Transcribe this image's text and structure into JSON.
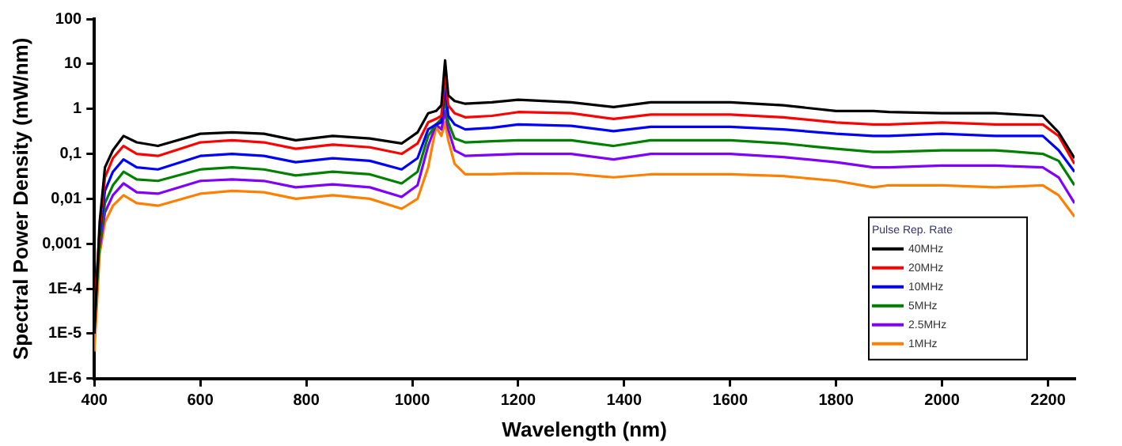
{
  "chart_data": {
    "type": "line",
    "xlabel": "Wavelength (nm)",
    "ylabel": "Spectral Power Density (mW/nm)",
    "legend_title": "Pulse Rep. Rate",
    "legend": "bottom right",
    "log": "y",
    "grid": false,
    "marker": "none",
    "line_style": "solid",
    "x": [
      400,
      410,
      420,
      435,
      455,
      480,
      520,
      600,
      660,
      720,
      780,
      850,
      920,
      980,
      1010,
      1030,
      1045,
      1055,
      1062,
      1068,
      1080,
      1100,
      1150,
      1200,
      1300,
      1380,
      1450,
      1600,
      1700,
      1800,
      1870,
      1900,
      2000,
      2100,
      2190,
      2220,
      2250
    ],
    "xlim": [
      400,
      2250
    ],
    "xticks": [
      400,
      600,
      800,
      1000,
      1200,
      1400,
      1600,
      1800,
      2000,
      2200
    ],
    "ylim": [
      1e-06,
      100
    ],
    "yticks": [
      100,
      10,
      1,
      {
        "value": 0.1,
        "label": "0,1"
      },
      {
        "value": 0.01,
        "label": "0,01"
      },
      {
        "value": 0.001,
        "label": "0,001"
      },
      {
        "value": 0.0001,
        "label": "1E-4"
      },
      {
        "value": 1e-05,
        "label": "1E-5"
      },
      {
        "value": 1e-06,
        "label": "1E-6"
      }
    ],
    "series": [
      {
        "name": "40MHz",
        "color": "#000000",
        "values": [
          1e-05,
          0.003,
          0.05,
          0.12,
          0.25,
          0.18,
          0.15,
          0.28,
          0.3,
          0.28,
          0.2,
          0.25,
          0.22,
          0.17,
          0.3,
          0.8,
          0.9,
          1.2,
          12,
          2,
          1.5,
          1.3,
          1.4,
          1.6,
          1.4,
          1.1,
          1.4,
          1.4,
          1.2,
          0.9,
          0.9,
          0.85,
          0.8,
          0.8,
          0.7,
          0.3,
          0.08
        ]
      },
      {
        "name": "20MHz",
        "color": "#ff0000",
        "values": [
          3e-05,
          0.002,
          0.03,
          0.08,
          0.15,
          0.1,
          0.09,
          0.18,
          0.2,
          0.18,
          0.13,
          0.16,
          0.14,
          0.1,
          0.17,
          0.5,
          0.6,
          0.7,
          6,
          1.2,
          0.8,
          0.65,
          0.7,
          0.85,
          0.8,
          0.6,
          0.75,
          0.75,
          0.65,
          0.5,
          0.45,
          0.45,
          0.5,
          0.45,
          0.45,
          0.25,
          0.06
        ]
      },
      {
        "name": "10MHz",
        "color": "#0000ff",
        "values": [
          null,
          0.0015,
          0.015,
          0.04,
          0.075,
          0.05,
          0.045,
          0.09,
          0.1,
          0.09,
          0.065,
          0.08,
          0.07,
          0.045,
          0.08,
          0.35,
          0.45,
          0.5,
          3,
          0.7,
          0.45,
          0.35,
          0.38,
          0.45,
          0.42,
          0.32,
          0.4,
          0.4,
          0.35,
          0.28,
          0.25,
          0.25,
          0.28,
          0.25,
          0.25,
          0.12,
          0.04
        ]
      },
      {
        "name": "5MHz",
        "color": "#008000",
        "values": [
          1.5e-05,
          0.001,
          0.008,
          0.02,
          0.04,
          0.027,
          0.025,
          0.045,
          0.05,
          0.045,
          0.033,
          0.04,
          0.035,
          0.022,
          0.04,
          0.25,
          0.45,
          0.6,
          1.5,
          0.5,
          0.22,
          0.18,
          0.19,
          0.2,
          0.2,
          0.15,
          0.2,
          0.2,
          0.17,
          0.13,
          0.11,
          0.11,
          0.12,
          0.12,
          0.1,
          0.07,
          0.02
        ]
      },
      {
        "name": "2.5MHz",
        "color": "#8000ff",
        "values": [
          null,
          0.0008,
          0.005,
          0.012,
          0.022,
          0.014,
          0.013,
          0.025,
          0.027,
          0.025,
          0.018,
          0.021,
          0.018,
          0.011,
          0.02,
          0.15,
          0.45,
          0.35,
          0.9,
          0.35,
          0.12,
          0.09,
          0.095,
          0.1,
          0.1,
          0.075,
          0.1,
          0.1,
          0.085,
          0.065,
          0.05,
          0.05,
          0.055,
          0.055,
          0.05,
          0.03,
          0.008
        ]
      },
      {
        "name": "1MHz",
        "color": "#ff8000",
        "values": [
          4e-06,
          0.0006,
          0.003,
          0.007,
          0.012,
          0.008,
          0.007,
          0.013,
          0.015,
          0.014,
          0.01,
          0.012,
          0.01,
          0.006,
          0.01,
          0.05,
          0.4,
          0.25,
          0.5,
          0.2,
          0.06,
          0.035,
          0.035,
          0.037,
          0.036,
          0.03,
          0.035,
          0.035,
          0.032,
          0.025,
          0.018,
          0.02,
          0.02,
          0.018,
          0.02,
          0.012,
          0.004
        ]
      }
    ]
  }
}
